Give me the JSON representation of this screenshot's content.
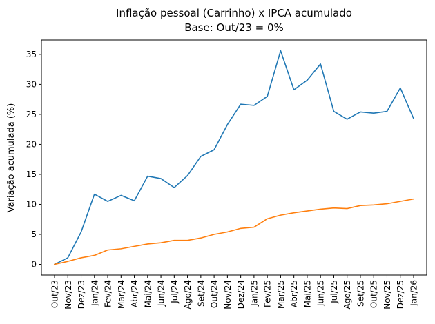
{
  "chart_data": {
    "type": "line",
    "title_line1": "Inflação pessoal (Carrinho) x IPCA acumulado",
    "title_line2": "Base: Out/23 = 0%",
    "xlabel": "",
    "ylabel": "Variação acumulada (%)",
    "ylim": [
      -1.78,
      37.4
    ],
    "yticks": [
      0,
      5,
      10,
      15,
      20,
      25,
      30,
      35
    ],
    "ytick_labels": [
      "0",
      "5",
      "10",
      "15",
      "20",
      "25",
      "30",
      "35"
    ],
    "categories": [
      "Out/23",
      "Nov/23",
      "Dez/23",
      "Jan/24",
      "Fev/24",
      "Mar/24",
      "Abr/24",
      "Mai/24",
      "Jun/24",
      "Jul/24",
      "Ago/24",
      "Set/24",
      "Out/24",
      "Nov/24",
      "Dez/24",
      "Jan/25",
      "Fev/25",
      "Mar/25",
      "Abr/25",
      "Mai/25",
      "Jun/25",
      "Jul/25",
      "Ago/25",
      "Set/25",
      "Out/25",
      "Nov/25",
      "Dez/25",
      "Jan/26"
    ],
    "series": [
      {
        "name": "Inflação pessoal (Carrinho)",
        "color": "#1f77b4",
        "values": [
          0,
          1.1,
          5.4,
          11.7,
          10.5,
          11.5,
          10.6,
          14.7,
          14.3,
          12.8,
          14.8,
          18.0,
          19.1,
          23.3,
          26.7,
          26.5,
          28.0,
          35.6,
          29.1,
          30.7,
          33.4,
          25.5,
          24.2,
          25.4,
          25.2,
          25.5,
          29.4,
          24.3
        ]
      },
      {
        "name": "IPCA acumulado",
        "color": "#ff7f0e",
        "values": [
          0,
          0.5,
          1.1,
          1.5,
          2.4,
          2.6,
          3.0,
          3.4,
          3.6,
          4.0,
          4.0,
          4.4,
          5.0,
          5.4,
          6.0,
          6.2,
          7.6,
          8.2,
          8.6,
          8.9,
          9.2,
          9.4,
          9.3,
          9.8,
          9.9,
          10.1,
          10.5,
          10.9
        ]
      }
    ]
  }
}
